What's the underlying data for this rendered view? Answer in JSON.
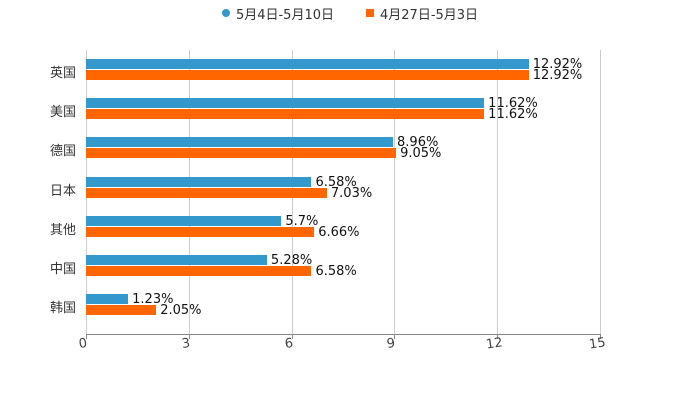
{
  "chart_data": {
    "type": "bar",
    "orientation": "horizontal",
    "categories": [
      "英国",
      "美国",
      "德国",
      "日本",
      "其他",
      "中国",
      "韩国"
    ],
    "series": [
      {
        "name": "5月4日-5月10日",
        "color": "#3399cc",
        "values": [
          12.92,
          11.62,
          8.96,
          6.58,
          5.7,
          5.28,
          1.23
        ],
        "labels": [
          "12.92%",
          "11.62%",
          "8.96%",
          "6.58%",
          "5.7%",
          "5.28%",
          "1.23%"
        ]
      },
      {
        "name": "4月27日-5月3日",
        "color": "#ff6600",
        "values": [
          12.92,
          11.62,
          9.05,
          7.03,
          6.66,
          6.58,
          2.05
        ],
        "labels": [
          "12.92%",
          "11.62%",
          "9.05%",
          "7.03%",
          "6.66%",
          "6.58%",
          "2.05%"
        ]
      }
    ],
    "title": "",
    "xlabel": "",
    "ylabel": "",
    "xlim": [
      0,
      15
    ],
    "xticks": [
      "0",
      "3",
      "6",
      "9",
      "12",
      "15"
    ],
    "grid": true,
    "legend_position": "top"
  },
  "legend": {
    "items": [
      {
        "label": "5月4日-5月10日",
        "color": "#3399cc"
      },
      {
        "label": "4月27日-5月3日",
        "color": "#ff6600"
      }
    ]
  }
}
